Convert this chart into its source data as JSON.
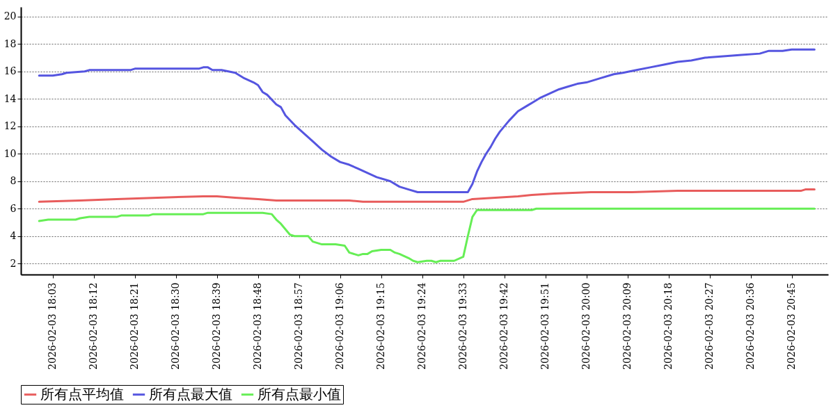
{
  "chart_data": {
    "type": "line",
    "xlim": [
      "2026-02-03T17:56",
      "2026-02-03T20:53"
    ],
    "ylim": [
      1.2,
      20.7
    ],
    "yticks": [
      2,
      4,
      6,
      8,
      10,
      12,
      14,
      16,
      18,
      20
    ],
    "xticks": [
      {
        "value": "2026-02-03T18:03",
        "label": "2026-02-03  18:03"
      },
      {
        "value": "2026-02-03T18:12",
        "label": "2026-02-03  18:12"
      },
      {
        "value": "2026-02-03T18:21",
        "label": "2026-02-03  18:21"
      },
      {
        "value": "2026-02-03T18:30",
        "label": "2026-02-03  18:30"
      },
      {
        "value": "2026-02-03T18:39",
        "label": "2026-02-03  18:39"
      },
      {
        "value": "2026-02-03T18:48",
        "label": "2026-02-03  18:48"
      },
      {
        "value": "2026-02-03T18:57",
        "label": "2026-02-03  18:57"
      },
      {
        "value": "2026-02-03T19:06",
        "label": "2026-02-03  19:06"
      },
      {
        "value": "2026-02-03T19:15",
        "label": "2026-02-03  19:15"
      },
      {
        "value": "2026-02-03T19:24",
        "label": "2026-02-03  19:24"
      },
      {
        "value": "2026-02-03T19:33",
        "label": "2026-02-03  19:33"
      },
      {
        "value": "2026-02-03T19:42",
        "label": "2026-02-03  19:42"
      },
      {
        "value": "2026-02-03T19:51",
        "label": "2026-02-03  19:51"
      },
      {
        "value": "2026-02-03T20:00",
        "label": "2026-02-03  20:00"
      },
      {
        "value": "2026-02-03T20:09",
        "label": "2026-02-03  20:09"
      },
      {
        "value": "2026-02-03T20:18",
        "label": "2026-02-03  20:18"
      },
      {
        "value": "2026-02-03T20:27",
        "label": "2026-02-03  20:27"
      },
      {
        "value": "2026-02-03T20:36",
        "label": "2026-02-03  20:36"
      },
      {
        "value": "2026-02-03T20:45",
        "label": "2026-02-03  20:45"
      }
    ],
    "grid": "y",
    "legend": "bottom",
    "line_style": "solid",
    "marker": "none",
    "series": [
      {
        "name": "所有点平均值",
        "color": "#e85c5c",
        "x": [
          "2026-02-03T18:00",
          "2026-02-03T18:09",
          "2026-02-03T18:17",
          "2026-02-03T18:26",
          "2026-02-03T18:36",
          "2026-02-03T18:39",
          "2026-02-03T18:43",
          "2026-02-03T18:48",
          "2026-02-03T18:52",
          "2026-02-03T19:08",
          "2026-02-03T19:11",
          "2026-02-03T19:33",
          "2026-02-03T19:35",
          "2026-02-03T19:40",
          "2026-02-03T19:45",
          "2026-02-03T19:48",
          "2026-02-03T19:53",
          "2026-02-03T20:01",
          "2026-02-03T20:10",
          "2026-02-03T20:20",
          "2026-02-03T20:47",
          "2026-02-03T20:48",
          "2026-02-03T20:50"
        ],
        "values": [
          6.5,
          6.6,
          6.7,
          6.8,
          6.9,
          6.9,
          6.8,
          6.7,
          6.6,
          6.6,
          6.5,
          6.5,
          6.7,
          6.8,
          6.9,
          7.0,
          7.1,
          7.2,
          7.2,
          7.3,
          7.3,
          7.4,
          7.4
        ]
      },
      {
        "name": "所有点最大值",
        "color": "#5555e0",
        "x": [
          "2026-02-03T18:00",
          "2026-02-03T18:03",
          "2026-02-03T18:05",
          "2026-02-03T18:06",
          "2026-02-03T18:10",
          "2026-02-03T18:11",
          "2026-02-03T18:20",
          "2026-02-03T18:21",
          "2026-02-03T18:35",
          "2026-02-03T18:36",
          "2026-02-03T18:37",
          "2026-02-03T18:38",
          "2026-02-03T18:40",
          "2026-02-03T18:43",
          "2026-02-03T18:45",
          "2026-02-03T18:47",
          "2026-02-03T18:48",
          "2026-02-03T18:49",
          "2026-02-03T18:50",
          "2026-02-03T18:52",
          "2026-02-03T18:53",
          "2026-02-03T18:54",
          "2026-02-03T18:56",
          "2026-02-03T18:58",
          "2026-02-03T19:00",
          "2026-02-03T19:02",
          "2026-02-03T19:04",
          "2026-02-03T19:06",
          "2026-02-03T19:08",
          "2026-02-03T19:10",
          "2026-02-03T19:12",
          "2026-02-03T19:14",
          "2026-02-03T19:17",
          "2026-02-03T19:19",
          "2026-02-03T19:21",
          "2026-02-03T19:23",
          "2026-02-03T19:34",
          "2026-02-03T19:35",
          "2026-02-03T19:36",
          "2026-02-03T19:37",
          "2026-02-03T19:38",
          "2026-02-03T19:39",
          "2026-02-03T19:40",
          "2026-02-03T19:41",
          "2026-02-03T19:43",
          "2026-02-03T19:45",
          "2026-02-03T19:47",
          "2026-02-03T19:49",
          "2026-02-03T19:50",
          "2026-02-03T19:52",
          "2026-02-03T19:54",
          "2026-02-03T19:56",
          "2026-02-03T19:58",
          "2026-02-03T20:00",
          "2026-02-03T20:03",
          "2026-02-03T20:06",
          "2026-02-03T20:08",
          "2026-02-03T20:11",
          "2026-02-03T20:14",
          "2026-02-03T20:17",
          "2026-02-03T20:20",
          "2026-02-03T20:23",
          "2026-02-03T20:26",
          "2026-02-03T20:30",
          "2026-02-03T20:34",
          "2026-02-03T20:38",
          "2026-02-03T20:40",
          "2026-02-03T20:43",
          "2026-02-03T20:45",
          "2026-02-03T20:50"
        ],
        "values": [
          15.7,
          15.7,
          15.8,
          15.9,
          16.0,
          16.1,
          16.1,
          16.2,
          16.2,
          16.3,
          16.3,
          16.1,
          16.1,
          15.9,
          15.5,
          15.2,
          15.0,
          14.5,
          14.3,
          13.6,
          13.4,
          12.8,
          12.1,
          11.5,
          10.9,
          10.3,
          9.8,
          9.4,
          9.2,
          8.9,
          8.6,
          8.3,
          8.0,
          7.6,
          7.4,
          7.2,
          7.2,
          7.8,
          8.7,
          9.4,
          10.0,
          10.5,
          11.1,
          11.6,
          12.4,
          13.1,
          13.5,
          13.9,
          14.1,
          14.4,
          14.7,
          14.9,
          15.1,
          15.2,
          15.5,
          15.8,
          15.9,
          16.1,
          16.3,
          16.5,
          16.7,
          16.8,
          17.0,
          17.1,
          17.2,
          17.3,
          17.5,
          17.5,
          17.6,
          17.6
        ]
      },
      {
        "name": "所有点最小值",
        "color": "#66ee55",
        "x": [
          "2026-02-03T18:00",
          "2026-02-03T18:02",
          "2026-02-03T18:08",
          "2026-02-03T18:09",
          "2026-02-03T18:11",
          "2026-02-03T18:17",
          "2026-02-03T18:18",
          "2026-02-03T18:24",
          "2026-02-03T18:25",
          "2026-02-03T18:36",
          "2026-02-03T18:37",
          "2026-02-03T18:49",
          "2026-02-03T18:51",
          "2026-02-03T18:52",
          "2026-02-03T18:53",
          "2026-02-03T18:55",
          "2026-02-03T18:56",
          "2026-02-03T18:59",
          "2026-02-03T19:00",
          "2026-02-03T19:02",
          "2026-02-03T19:05",
          "2026-02-03T19:07",
          "2026-02-03T19:08",
          "2026-02-03T19:10",
          "2026-02-03T19:11",
          "2026-02-03T19:12",
          "2026-02-03T19:13",
          "2026-02-03T19:15",
          "2026-02-03T19:17",
          "2026-02-03T19:18",
          "2026-02-03T19:19",
          "2026-02-03T19:21",
          "2026-02-03T19:22",
          "2026-02-03T19:23",
          "2026-02-03T19:25",
          "2026-02-03T19:26",
          "2026-02-03T19:27",
          "2026-02-03T19:28",
          "2026-02-03T19:31",
          "2026-02-03T19:33",
          "2026-02-03T19:34",
          "2026-02-03T19:35",
          "2026-02-03T19:36",
          "2026-02-03T19:48",
          "2026-02-03T19:49",
          "2026-02-03T20:50"
        ],
        "values": [
          5.1,
          5.2,
          5.2,
          5.3,
          5.4,
          5.4,
          5.5,
          5.5,
          5.6,
          5.6,
          5.7,
          5.7,
          5.6,
          5.2,
          4.9,
          4.1,
          4.0,
          4.0,
          3.6,
          3.4,
          3.4,
          3.3,
          2.8,
          2.6,
          2.7,
          2.7,
          2.9,
          3.0,
          3.0,
          2.8,
          2.7,
          2.4,
          2.2,
          2.1,
          2.2,
          2.2,
          2.1,
          2.2,
          2.2,
          2.5,
          4.0,
          5.4,
          5.9,
          5.9,
          6.0,
          6.0
        ]
      }
    ]
  }
}
